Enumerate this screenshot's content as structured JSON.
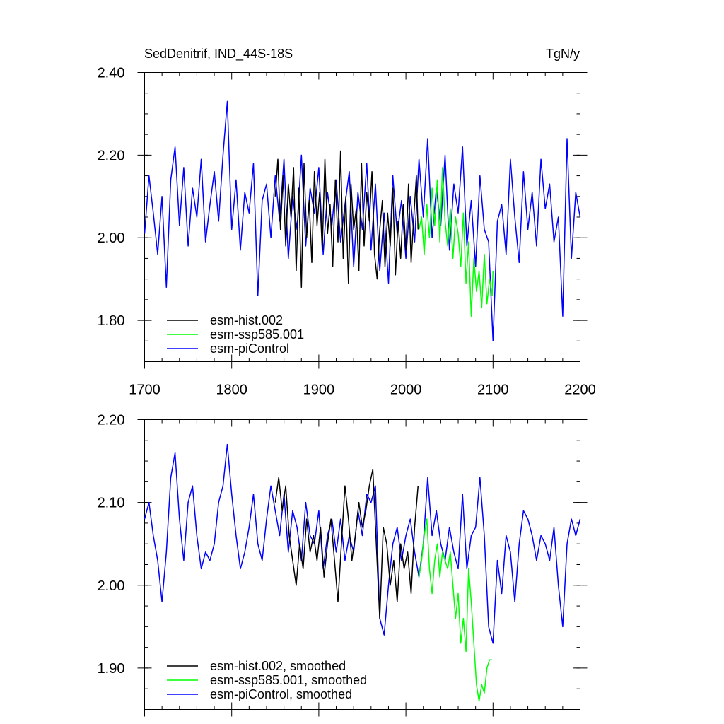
{
  "chart_data": [
    {
      "type": "line",
      "title": "SedDenitrif, IND_44S-18S",
      "units": "TgN/y",
      "xlim": [
        1700,
        2200
      ],
      "ylim": [
        1.7,
        2.4
      ],
      "xticks": [
        "1700",
        "1800",
        "1900",
        "2000",
        "2100",
        "2200"
      ],
      "yticks": [
        "1.80",
        "2.00",
        "2.20",
        "2.40"
      ],
      "grid": false,
      "legend_position": "bottom-left",
      "series": [
        {
          "name": "esm-hist.002",
          "color": "#000000",
          "x": [
            1850,
            1853,
            1856,
            1859,
            1862,
            1865,
            1868,
            1871,
            1874,
            1877,
            1880,
            1883,
            1886,
            1889,
            1892,
            1895,
            1898,
            1901,
            1904,
            1907,
            1910,
            1913,
            1916,
            1919,
            1922,
            1925,
            1928,
            1931,
            1934,
            1937,
            1940,
            1943,
            1946,
            1949,
            1952,
            1955,
            1958,
            1961,
            1964,
            1967,
            1970,
            1973,
            1976,
            1979,
            1982,
            1985,
            1988,
            1991,
            1994,
            1997,
            2000,
            2003,
            2006,
            2009,
            2012,
            2014
          ],
          "y": [
            2.1,
            2.19,
            2.02,
            2.15,
            1.98,
            2.13,
            2.05,
            2.17,
            1.92,
            2.12,
            1.88,
            2.18,
            2.0,
            2.09,
            1.94,
            2.16,
            2.03,
            2.11,
            1.97,
            2.19,
            2.01,
            2.08,
            1.93,
            2.14,
            1.99,
            2.21,
            1.95,
            2.1,
            1.89,
            2.13,
            2.02,
            2.07,
            1.92,
            2.18,
            1.98,
            2.11,
            2.04,
            2.16,
            1.96,
            1.9,
            2.02,
            2.09,
            1.93,
            2.06,
            1.98,
            2.12,
            1.91,
            2.04,
            1.95,
            2.08,
            1.97,
            2.13,
            1.94,
            2.05,
            2.15,
            2.02
          ]
        },
        {
          "name": "esm-ssp585.001",
          "color": "#00ff00",
          "x": [
            2015,
            2018,
            2021,
            2024,
            2027,
            2030,
            2033,
            2036,
            2039,
            2042,
            2045,
            2048,
            2051,
            2054,
            2057,
            2060,
            2063,
            2066,
            2069,
            2072,
            2075,
            2078,
            2081,
            2084,
            2087,
            2090,
            2093,
            2096,
            2099,
            2100
          ],
          "y": [
            2.02,
            2.05,
            1.96,
            2.08,
            2.0,
            2.12,
            2.03,
            2.14,
            1.99,
            2.17,
            2.04,
            1.98,
            2.07,
            1.95,
            2.05,
            2.01,
            1.93,
            2.06,
            1.89,
            1.99,
            1.81,
            1.95,
            1.87,
            1.92,
            1.83,
            1.96,
            1.84,
            1.9,
            1.86,
            1.92
          ]
        },
        {
          "name": "esm-piControl",
          "color": "#0000ff",
          "x": [
            1700,
            1705,
            1710,
            1715,
            1720,
            1725,
            1730,
            1735,
            1740,
            1745,
            1750,
            1755,
            1760,
            1765,
            1770,
            1775,
            1780,
            1785,
            1790,
            1795,
            1800,
            1805,
            1810,
            1815,
            1820,
            1825,
            1830,
            1835,
            1840,
            1845,
            1850,
            1855,
            1860,
            1865,
            1870,
            1875,
            1880,
            1885,
            1890,
            1895,
            1900,
            1905,
            1910,
            1915,
            1920,
            1925,
            1930,
            1935,
            1940,
            1945,
            1950,
            1955,
            1960,
            1965,
            1970,
            1975,
            1980,
            1985,
            1990,
            1995,
            2000,
            2005,
            2010,
            2015,
            2020,
            2025,
            2030,
            2035,
            2040,
            2045,
            2050,
            2055,
            2060,
            2065,
            2070,
            2075,
            2080,
            2085,
            2090,
            2095,
            2100,
            2105,
            2110,
            2115,
            2120,
            2125,
            2130,
            2135,
            2140,
            2145,
            2150,
            2155,
            2160,
            2165,
            2170,
            2175,
            2180,
            2185,
            2190,
            2195,
            2200
          ],
          "y": [
            2.01,
            2.15,
            2.06,
            1.96,
            2.1,
            1.88,
            2.14,
            2.22,
            2.03,
            2.17,
            1.98,
            2.12,
            2.05,
            2.19,
            1.99,
            2.08,
            2.16,
            2.04,
            2.2,
            2.33,
            2.02,
            2.14,
            1.97,
            2.11,
            2.06,
            2.18,
            1.86,
            2.09,
            2.13,
            2.0,
            2.15,
            2.04,
            2.19,
            1.95,
            2.1,
            2.02,
            2.2,
            1.98,
            2.12,
            2.06,
            2.17,
            1.96,
            2.11,
            2.03,
            2.14,
            1.99,
            2.08,
            2.16,
            1.93,
            2.11,
            2.02,
            2.18,
            1.97,
            2.13,
            1.92,
            2.06,
            1.89,
            2.15,
            2.01,
            2.09,
            1.95,
            2.1,
            1.99,
            2.19,
            2.05,
            2.24,
            2.0,
            2.12,
            2.03,
            2.2,
            1.97,
            2.13,
            2.06,
            2.22,
            1.98,
            2.09,
            1.93,
            2.15,
            2.02,
            1.99,
            1.75,
            2.04,
            2.08,
            1.96,
            2.19,
            2.05,
            1.94,
            2.16,
            2.02,
            2.11,
            1.98,
            2.19,
            2.07,
            2.13,
            1.99,
            2.05,
            1.81,
            2.24,
            1.95,
            2.11,
            2.05
          ]
        }
      ]
    },
    {
      "type": "line",
      "xlim": [
        1700,
        2200
      ],
      "ylim": [
        1.85,
        2.2
      ],
      "yticks": [
        "1.90",
        "2.00",
        "2.10",
        "2.20"
      ],
      "grid": false,
      "legend_position": "bottom-left",
      "series": [
        {
          "name": "esm-hist.002, smoothed",
          "color": "#000000",
          "x": [
            1850,
            1854,
            1858,
            1862,
            1866,
            1870,
            1874,
            1878,
            1882,
            1886,
            1890,
            1894,
            1898,
            1902,
            1906,
            1910,
            1914,
            1918,
            1922,
            1926,
            1930,
            1934,
            1938,
            1942,
            1946,
            1950,
            1954,
            1958,
            1962,
            1966,
            1970,
            1974,
            1978,
            1982,
            1986,
            1990,
            1994,
            1998,
            2002,
            2006,
            2010,
            2014
          ],
          "y": [
            2.1,
            2.13,
            2.09,
            2.12,
            2.06,
            2.03,
            2.0,
            2.05,
            2.02,
            2.08,
            2.04,
            2.06,
            2.03,
            2.07,
            2.01,
            2.05,
            2.08,
            2.03,
            1.98,
            2.05,
            2.12,
            2.08,
            2.03,
            2.06,
            2.1,
            2.07,
            2.09,
            2.12,
            2.14,
            2.05,
            1.96,
            2.07,
            2.05,
            2.0,
            2.03,
            1.98,
            2.05,
            2.02,
            2.04,
            1.99,
            2.07,
            2.12
          ]
        },
        {
          "name": "esm-ssp585.001, smoothed",
          "color": "#00ff00",
          "x": [
            2015,
            2018,
            2021,
            2024,
            2027,
            2030,
            2033,
            2036,
            2039,
            2042,
            2045,
            2048,
            2051,
            2054,
            2057,
            2060,
            2063,
            2066,
            2069,
            2072,
            2075,
            2078,
            2081,
            2084,
            2087,
            2090,
            2093,
            2096,
            2099
          ],
          "y": [
            2.01,
            2.03,
            2.06,
            2.08,
            2.02,
            1.99,
            2.03,
            2.05,
            2.01,
            2.04,
            2.03,
            2.02,
            2.04,
            2.0,
            1.96,
            1.99,
            1.93,
            1.96,
            1.92,
            2.02,
            1.98,
            1.93,
            1.88,
            1.86,
            1.88,
            1.87,
            1.9,
            1.91,
            1.91
          ]
        },
        {
          "name": "esm-piControl, smoothed",
          "color": "#0000ff",
          "x": [
            1700,
            1705,
            1710,
            1715,
            1720,
            1725,
            1730,
            1735,
            1740,
            1745,
            1750,
            1755,
            1760,
            1765,
            1770,
            1775,
            1780,
            1785,
            1790,
            1795,
            1800,
            1805,
            1810,
            1815,
            1820,
            1825,
            1830,
            1835,
            1840,
            1845,
            1850,
            1855,
            1860,
            1865,
            1870,
            1875,
            1880,
            1885,
            1890,
            1895,
            1900,
            1905,
            1910,
            1915,
            1920,
            1925,
            1930,
            1935,
            1940,
            1945,
            1950,
            1955,
            1960,
            1965,
            1970,
            1975,
            1980,
            1985,
            1990,
            1995,
            2000,
            2005,
            2010,
            2015,
            2020,
            2025,
            2030,
            2035,
            2040,
            2045,
            2050,
            2055,
            2060,
            2065,
            2070,
            2075,
            2080,
            2085,
            2090,
            2095,
            2100,
            2105,
            2110,
            2115,
            2120,
            2125,
            2130,
            2135,
            2140,
            2145,
            2150,
            2155,
            2160,
            2165,
            2170,
            2175,
            2180,
            2185,
            2190,
            2195,
            2200
          ],
          "y": [
            2.08,
            2.1,
            2.06,
            2.03,
            1.98,
            2.04,
            2.13,
            2.16,
            2.08,
            2.03,
            2.1,
            2.12,
            2.06,
            2.02,
            2.04,
            2.03,
            2.05,
            2.1,
            2.12,
            2.17,
            2.11,
            2.06,
            2.02,
            2.04,
            2.07,
            2.11,
            2.05,
            2.03,
            2.08,
            2.12,
            2.09,
            2.06,
            2.11,
            2.04,
            2.09,
            2.07,
            2.03,
            2.1,
            2.06,
            2.05,
            2.09,
            2.02,
            2.06,
            2.08,
            2.04,
            2.08,
            2.03,
            2.06,
            2.04,
            2.09,
            2.06,
            2.11,
            2.1,
            2.12,
            1.96,
            1.94,
            2.0,
            2.05,
            2.07,
            2.03,
            2.06,
            2.08,
            2.04,
            2.01,
            2.05,
            2.13,
            2.06,
            2.09,
            2.05,
            2.03,
            2.07,
            2.04,
            2.02,
            2.11,
            2.02,
            2.06,
            2.07,
            2.13,
            2.06,
            1.95,
            1.93,
            2.03,
            1.99,
            2.06,
            2.04,
            1.98,
            2.05,
            2.09,
            2.08,
            2.06,
            2.03,
            2.06,
            2.05,
            2.03,
            2.07,
            2.0,
            1.95,
            2.05,
            2.08,
            2.06,
            2.08
          ]
        }
      ]
    }
  ]
}
